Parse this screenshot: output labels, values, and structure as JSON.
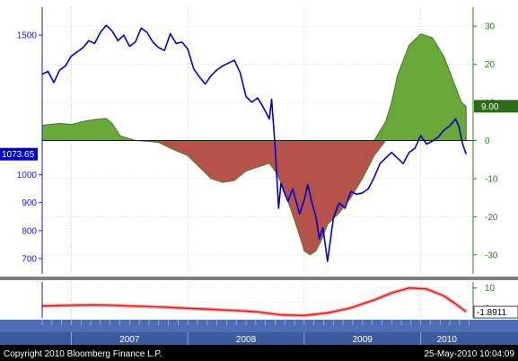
{
  "chart_data": {
    "type": "line",
    "title": "",
    "x_tick_labels": [
      "2007",
      "2008",
      "2009",
      "2010"
    ],
    "left_axis": {
      "ticks": [
        1500,
        1000,
        900,
        800,
        700
      ],
      "ylim": [
        645,
        1600
      ]
    },
    "right_axis": {
      "ticks": [
        30,
        20,
        10,
        0,
        -10,
        -20,
        -30
      ],
      "ylim": [
        -35,
        35
      ]
    },
    "last_value_tags": {
      "left": "1073.65",
      "right": "9.00",
      "lower": "-1.8911"
    },
    "series": [
      {
        "axis": "left",
        "color": "#0000cc",
        "x": [
          2006.75,
          2006.8,
          2006.85,
          2006.9,
          2006.95,
          2007.0,
          2007.05,
          2007.1,
          2007.15,
          2007.2,
          2007.25,
          2007.3,
          2007.35,
          2007.4,
          2007.45,
          2007.5,
          2007.55,
          2007.6,
          2007.65,
          2007.7,
          2007.75,
          2007.8,
          2007.85,
          2007.9,
          2007.95,
          2008.0,
          2008.05,
          2008.1,
          2008.15,
          2008.2,
          2008.25,
          2008.3,
          2008.35,
          2008.4,
          2008.45,
          2008.5,
          2008.55,
          2008.6,
          2008.65,
          2008.7,
          2008.72,
          2008.75,
          2008.78,
          2008.8,
          2008.83,
          2008.86,
          2008.9,
          2008.93,
          2008.96,
          2009.0,
          2009.03,
          2009.06,
          2009.1,
          2009.13,
          2009.16,
          2009.2,
          2009.25,
          2009.3,
          2009.35,
          2009.4,
          2009.45,
          2009.5,
          2009.55,
          2009.6,
          2009.65,
          2009.7,
          2009.75,
          2009.8,
          2009.85,
          2009.9,
          2009.95,
          2010.0,
          2010.05,
          2010.1,
          2010.15,
          2010.2,
          2010.25,
          2010.3,
          2010.33,
          2010.36,
          2010.39
        ],
        "values": [
          1360,
          1370,
          1330,
          1375,
          1390,
          1425,
          1440,
          1455,
          1480,
          1470,
          1510,
          1535,
          1515,
          1480,
          1500,
          1460,
          1475,
          1525,
          1510,
          1475,
          1455,
          1445,
          1505,
          1470,
          1475,
          1450,
          1380,
          1350,
          1325,
          1355,
          1375,
          1390,
          1400,
          1410,
          1365,
          1280,
          1260,
          1275,
          1240,
          1200,
          1270,
          1100,
          880,
          970,
          935,
          905,
          950,
          905,
          860,
          910,
          965,
          910,
          850,
          770,
          810,
          690,
          845,
          900,
          880,
          940,
          930,
          935,
          950,
          990,
          1040,
          1060,
          1080,
          1060,
          1040,
          1080,
          1095,
          1140,
          1110,
          1120,
          1135,
          1160,
          1175,
          1200,
          1170,
          1110,
          1073.65
        ]
      },
      {
        "axis": "right",
        "color": "#3c8c1e",
        "x": [
          2006.75,
          2006.9,
          2007.0,
          2007.1,
          2007.2,
          2007.3,
          2007.35,
          2007.42,
          2007.55,
          2007.65,
          2007.75,
          2007.85,
          2008.0,
          2008.1,
          2008.2,
          2008.3,
          2008.4,
          2008.5,
          2008.6,
          2008.7,
          2008.75,
          2008.8,
          2008.85,
          2008.95,
          2009.0,
          2009.05,
          2009.1,
          2009.15,
          2009.2,
          2009.3,
          2009.4,
          2009.5,
          2009.6,
          2009.7,
          2009.75,
          2009.8,
          2009.9,
          2010.0,
          2010.1,
          2010.2,
          2010.3,
          2010.35,
          2010.39
        ],
        "values": [
          4,
          4.5,
          4.2,
          5,
          5.5,
          5.8,
          4.5,
          1.2,
          0,
          -0.2,
          -0.5,
          -2,
          -4,
          -7,
          -10,
          -11,
          -10.5,
          -8,
          -7,
          -6,
          -8,
          -11,
          -15,
          -24,
          -29,
          -30,
          -29,
          -26,
          -22,
          -19,
          -15,
          -10,
          -4,
          5,
          10,
          17,
          25,
          28,
          27,
          22,
          14,
          10,
          9
        ]
      },
      {
        "axis": "lower",
        "color": "#dd1111",
        "x": [
          2006.75,
          2007.0,
          2007.2,
          2007.4,
          2007.6,
          2007.8,
          2008.0,
          2008.2,
          2008.4,
          2008.5,
          2008.6,
          2008.8,
          2009.0,
          2009.2,
          2009.4,
          2009.6,
          2009.75,
          2009.9,
          2010.05,
          2010.2,
          2010.3,
          2010.39
        ],
        "values": [
          1,
          1.3,
          1.5,
          1.2,
          0.8,
          0.4,
          -0.2,
          -0.7,
          -1.3,
          -1.6,
          -2,
          -3.5,
          -3.8,
          -2.5,
          0,
          4,
          7.5,
          10,
          9.5,
          6,
          2,
          -1.8911
        ]
      }
    ],
    "lower_panel": {
      "ticks": [
        10,
        0
      ],
      "ylim": [
        -5,
        13
      ]
    }
  },
  "footer": {
    "copyright": "Copyright 2010 Bloomberg Finance L.P.",
    "timestamp": "25-May-2010 10:04:09"
  }
}
